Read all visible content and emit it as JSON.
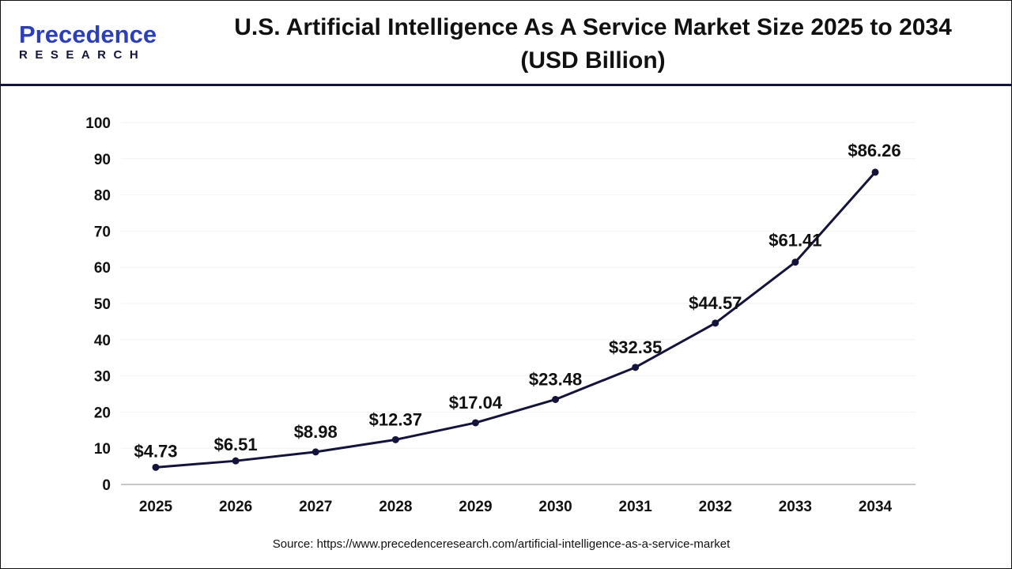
{
  "logo": {
    "line1": "Precedence",
    "line2": "RESEARCH"
  },
  "title": "U.S. Artificial Intelligence As A Service Market Size 2025 to 2034 (USD Billion)",
  "source": "Source: https://www.precedenceresearch.com/artificial-intelligence-as-a-service-market",
  "chart_data": {
    "type": "line",
    "title": "U.S. Artificial Intelligence As A Service Market Size 2025 to 2034 (USD Billion)",
    "xlabel": "",
    "ylabel": "",
    "categories": [
      "2025",
      "2026",
      "2027",
      "2028",
      "2029",
      "2030",
      "2031",
      "2032",
      "2033",
      "2034"
    ],
    "values": [
      4.73,
      6.51,
      8.98,
      12.37,
      17.04,
      23.48,
      32.35,
      44.57,
      61.41,
      86.26
    ],
    "data_labels": [
      "$4.73",
      "$6.51",
      "$8.98",
      "$12.37",
      "$17.04",
      "$23.48",
      "$32.35",
      "$44.57",
      "$61.41",
      "$86.26"
    ],
    "ylim": [
      0,
      100
    ],
    "yticks": [
      0,
      10,
      20,
      30,
      40,
      50,
      60,
      70,
      80,
      90,
      100
    ],
    "grid": true,
    "line_color": "#14143a"
  }
}
